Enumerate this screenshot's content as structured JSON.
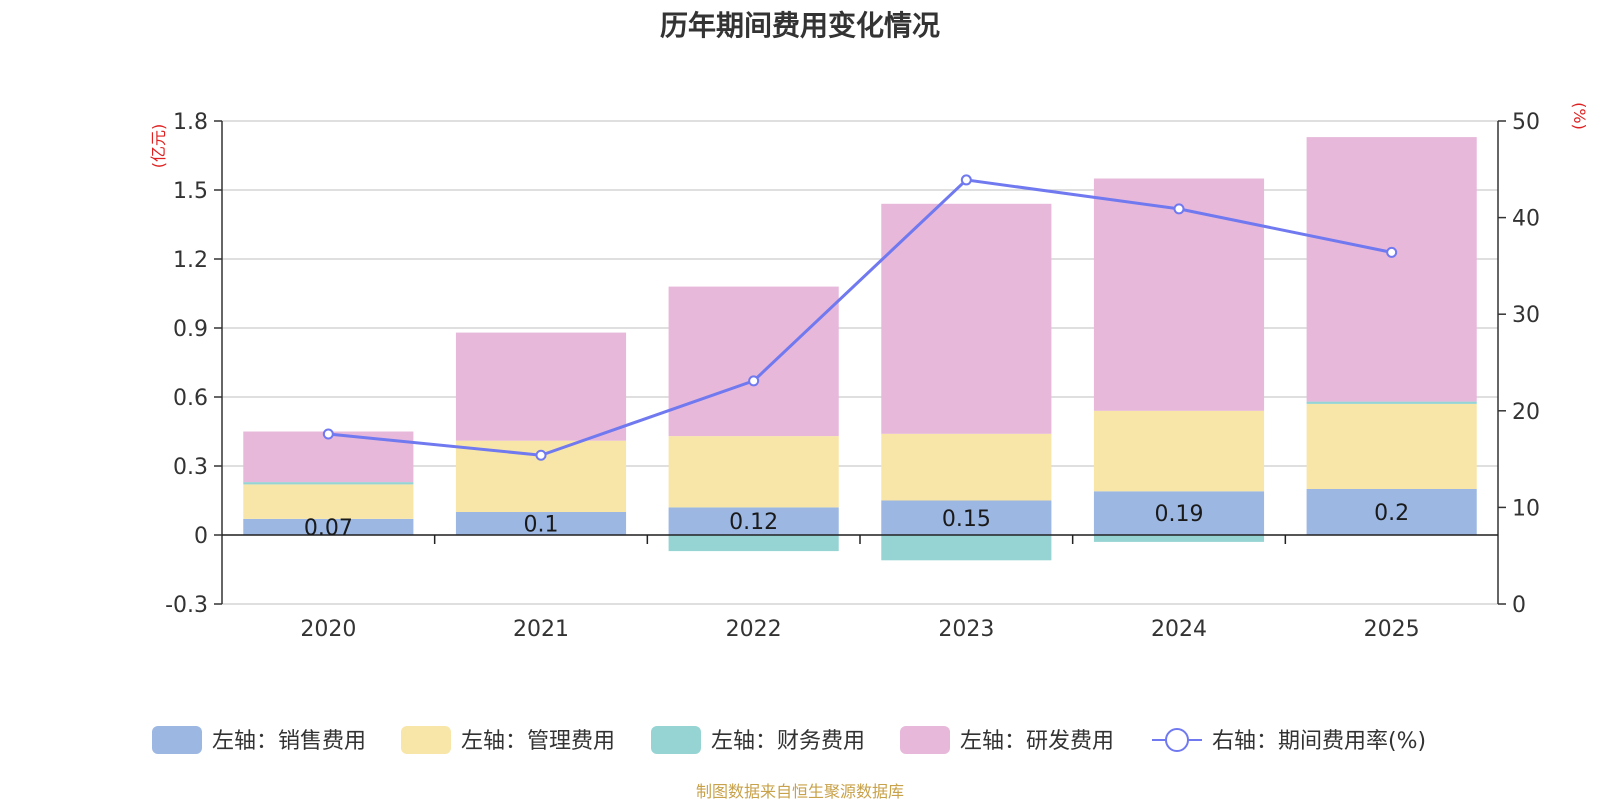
{
  "title": "历年期间费用变化情况",
  "source_note": "制图数据来自恒生聚源数据库",
  "chart_data": {
    "type": "bar",
    "stacked": true,
    "categories": [
      "2020",
      "2021",
      "2022",
      "2023",
      "2024",
      "2025"
    ],
    "left_axis": {
      "unit": "(亿元)",
      "ylim": [
        -0.3,
        1.8
      ],
      "ticks": [
        "-0.3",
        "0",
        "0.3",
        "0.6",
        "0.9",
        "1.2",
        "1.5",
        "1.8"
      ]
    },
    "right_axis": {
      "unit": "(%)",
      "ylim": [
        0,
        50
      ],
      "ticks": [
        "0",
        "10",
        "20",
        "30",
        "40",
        "50"
      ]
    },
    "grid": true,
    "legend_position": "bottom",
    "series": [
      {
        "name": "左轴：销售费用",
        "type": "bar",
        "axis": "left",
        "color": "#9bb7e2",
        "values": [
          0.07,
          0.1,
          0.12,
          0.15,
          0.19,
          0.2
        ],
        "labels": [
          "0.07",
          "0.1",
          "0.12",
          "0.15",
          "0.19",
          "0.2"
        ]
      },
      {
        "name": "左轴：管理费用",
        "type": "bar",
        "axis": "left",
        "color": "#f8e6a8",
        "values": [
          0.15,
          0.31,
          0.31,
          0.29,
          0.35,
          0.37
        ]
      },
      {
        "name": "左轴：财务费用",
        "type": "bar",
        "axis": "left",
        "color": "#96d4d4",
        "values": [
          0.01,
          0.0,
          -0.07,
          -0.11,
          -0.03,
          0.01
        ]
      },
      {
        "name": "左轴：研发费用",
        "type": "bar",
        "axis": "left",
        "color": "#e7b8da",
        "values": [
          0.22,
          0.47,
          0.65,
          1.0,
          1.01,
          1.15
        ]
      },
      {
        "name": "右轴：期间费用率(%)",
        "type": "line",
        "axis": "right",
        "color": "#7079ef",
        "values": [
          17.6,
          15.4,
          23.1,
          43.9,
          40.9,
          36.4
        ]
      }
    ]
  }
}
